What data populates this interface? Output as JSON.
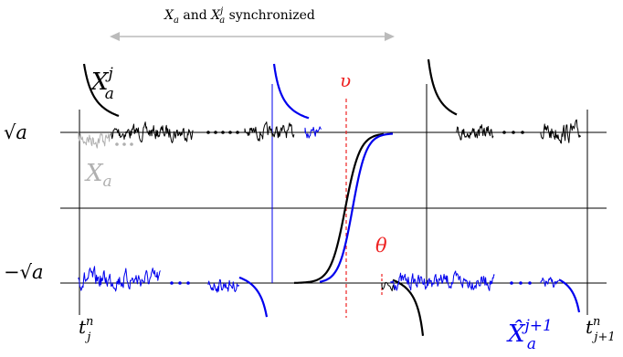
{
  "caption": {
    "x_a": "X",
    "x_a_sub": "a",
    "and": " and ",
    "x_aj": "X",
    "x_aj_sub": "a",
    "x_aj_sup": "j",
    "synchronized": " synchronized"
  },
  "labels": {
    "sqrt_a": "√a",
    "neg_sqrt_a": "−√a",
    "upsilon": "υ",
    "theta": "θ",
    "xaj_main": "X",
    "xaj_sub": "a",
    "xaj_sup": "j",
    "xa_grey": "X",
    "xa_grey_sub": "a",
    "t_j": "t",
    "t_j_sup": "n",
    "t_j_sub": "j",
    "t_j1": "t",
    "t_j1_sup": "n",
    "t_j1_sub": "j+1",
    "xhat": "X̂",
    "xhat_sub": "a",
    "xhat_sup": "j+1"
  },
  "colors": {
    "black": "#000000",
    "blue": "#0000ee",
    "grey": "#b0b0b0",
    "red": "#ee2222",
    "arrow": "#bbbbbb"
  }
}
